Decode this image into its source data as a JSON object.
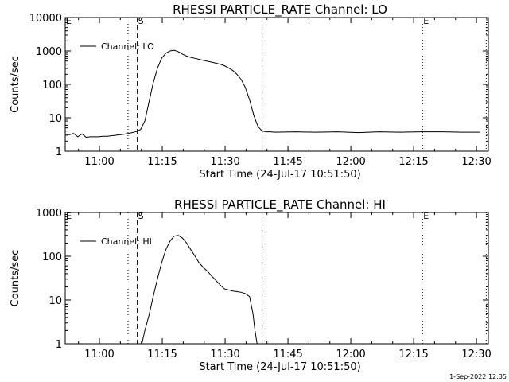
{
  "footer_timestamp": "1-Sep-2022 12:35",
  "chart_data": [
    {
      "type": "line",
      "title": "RHESSI PARTICLE_RATE Channel: LO",
      "xlabel": "Start Time (24-Jul-17 10:51:50)",
      "ylabel": "Counts/sec",
      "x_unit": "minutes since 10:51:50",
      "xlim": [
        0,
        101
      ],
      "ylim": [
        1,
        10000
      ],
      "y_scale": "log",
      "x_ticks": [
        {
          "label": "11:00",
          "value": 8.17
        },
        {
          "label": "11:15",
          "value": 23.17
        },
        {
          "label": "11:30",
          "value": 38.17
        },
        {
          "label": "11:45",
          "value": 53.17
        },
        {
          "label": "12:00",
          "value": 68.17
        },
        {
          "label": "12:15",
          "value": 83.17
        },
        {
          "label": "12:30",
          "value": 98.17
        }
      ],
      "y_ticks": [
        {
          "label": "1",
          "value": 1
        },
        {
          "label": "10",
          "value": 10
        },
        {
          "label": "100",
          "value": 100
        },
        {
          "label": "1000",
          "value": 1000
        },
        {
          "label": "10000",
          "value": 10000
        }
      ],
      "legend": {
        "position": "top-left",
        "entries": [
          "Channel: LO"
        ]
      },
      "markers": [
        {
          "style": "dotted",
          "x": 15.0,
          "label": ""
        },
        {
          "style": "dashed",
          "x": 17.2,
          "label": "S"
        },
        {
          "style": "dashed",
          "x": 47.0,
          "label": ""
        },
        {
          "style": "dotted",
          "x": 85.3,
          "label": "E"
        },
        {
          "style": "dotted",
          "x": 100.5,
          "label": ""
        }
      ],
      "corner_label": "E",
      "series": [
        {
          "name": "Channel: LO",
          "x": [
            0,
            1,
            2,
            3,
            4,
            5,
            6,
            7,
            8,
            9,
            10,
            11,
            12,
            13,
            14,
            15,
            16,
            17,
            18,
            19,
            20,
            21,
            22,
            23,
            24,
            25,
            26,
            27,
            28,
            29,
            30,
            31,
            32,
            33,
            34,
            35,
            36,
            37,
            38,
            39,
            40,
            41,
            42,
            43,
            44,
            45,
            46,
            47,
            48,
            49,
            50,
            55,
            60,
            65,
            70,
            75,
            80,
            85,
            90,
            95,
            99
          ],
          "y": [
            3.3,
            3.1,
            3.4,
            2.7,
            3.3,
            2.6,
            2.7,
            2.7,
            2.7,
            2.8,
            2.8,
            2.9,
            3.0,
            3.1,
            3.2,
            3.4,
            3.6,
            3.9,
            4.5,
            8,
            30,
            110,
            300,
            600,
            850,
            1000,
            1050,
            950,
            800,
            700,
            640,
            600,
            560,
            520,
            490,
            460,
            430,
            400,
            360,
            310,
            260,
            200,
            140,
            80,
            35,
            12,
            5.5,
            4.0,
            3.8,
            3.8,
            3.7,
            3.8,
            3.7,
            3.8,
            3.6,
            3.8,
            3.7,
            3.8,
            3.8,
            3.7,
            3.7
          ]
        }
      ]
    },
    {
      "type": "line",
      "title": "RHESSI PARTICLE_RATE Channel: HI",
      "xlabel": "Start Time (24-Jul-17 10:51:50)",
      "ylabel": "Counts/sec",
      "x_unit": "minutes since 10:51:50",
      "xlim": [
        0,
        101
      ],
      "ylim": [
        1,
        1000
      ],
      "y_scale": "log",
      "x_ticks": [
        {
          "label": "11:00",
          "value": 8.17
        },
        {
          "label": "11:15",
          "value": 23.17
        },
        {
          "label": "11:30",
          "value": 38.17
        },
        {
          "label": "11:45",
          "value": 53.17
        },
        {
          "label": "12:00",
          "value": 68.17
        },
        {
          "label": "12:15",
          "value": 83.17
        },
        {
          "label": "12:30",
          "value": 98.17
        }
      ],
      "y_ticks": [
        {
          "label": "1",
          "value": 1
        },
        {
          "label": "10",
          "value": 10
        },
        {
          "label": "100",
          "value": 100
        },
        {
          "label": "1000",
          "value": 1000
        }
      ],
      "legend": {
        "position": "top-left",
        "entries": [
          "Channel: HI"
        ]
      },
      "markers": [
        {
          "style": "dotted",
          "x": 15.0,
          "label": ""
        },
        {
          "style": "dashed",
          "x": 17.2,
          "label": "S"
        },
        {
          "style": "dashed",
          "x": 47.0,
          "label": ""
        },
        {
          "style": "dotted",
          "x": 85.3,
          "label": "E"
        },
        {
          "style": "dotted",
          "x": 100.5,
          "label": ""
        }
      ],
      "corner_label": "E",
      "series": [
        {
          "name": "Channel: HI",
          "x": [
            18.3,
            19,
            20,
            21,
            22,
            23,
            24,
            25,
            26,
            27,
            28,
            29,
            30,
            31,
            32,
            33,
            34,
            35,
            36,
            37,
            38,
            39,
            40,
            41,
            42,
            43,
            44,
            44.8,
            45.3,
            45.8
          ],
          "y": [
            1,
            2,
            4.5,
            12,
            30,
            70,
            140,
            220,
            290,
            300,
            260,
            200,
            140,
            100,
            70,
            55,
            45,
            35,
            28,
            22,
            18,
            17,
            16,
            15.5,
            15,
            14,
            12,
            5,
            2,
            1
          ]
        }
      ]
    }
  ]
}
